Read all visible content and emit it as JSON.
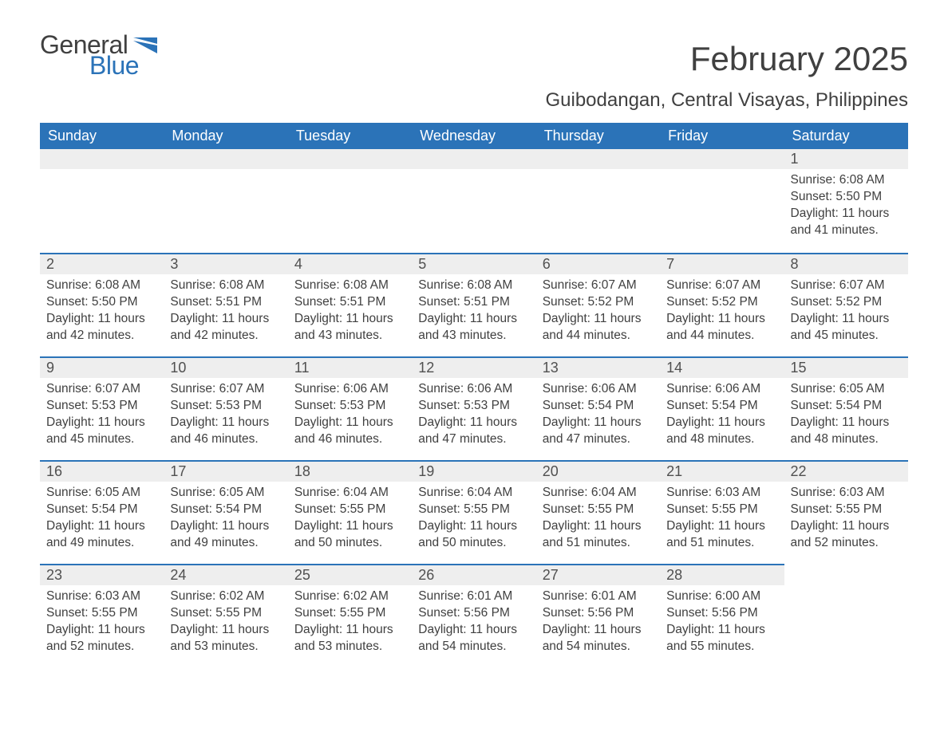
{
  "logo": {
    "general": "General",
    "blue": "Blue"
  },
  "title": "February 2025",
  "subtitle": "Guibodangan, Central Visayas, Philippines",
  "colors": {
    "brand_blue": "#2b73b8",
    "text": "#404040",
    "row_bg": "#eeeeee",
    "background": "#ffffff"
  },
  "calendar": {
    "day_headers": [
      "Sunday",
      "Monday",
      "Tuesday",
      "Wednesday",
      "Thursday",
      "Friday",
      "Saturday"
    ],
    "weeks": [
      [
        null,
        null,
        null,
        null,
        null,
        null,
        {
          "n": "1",
          "sunrise": "Sunrise: 6:08 AM",
          "sunset": "Sunset: 5:50 PM",
          "daylight": "Daylight: 11 hours and 41 minutes."
        }
      ],
      [
        {
          "n": "2",
          "sunrise": "Sunrise: 6:08 AM",
          "sunset": "Sunset: 5:50 PM",
          "daylight": "Daylight: 11 hours and 42 minutes."
        },
        {
          "n": "3",
          "sunrise": "Sunrise: 6:08 AM",
          "sunset": "Sunset: 5:51 PM",
          "daylight": "Daylight: 11 hours and 42 minutes."
        },
        {
          "n": "4",
          "sunrise": "Sunrise: 6:08 AM",
          "sunset": "Sunset: 5:51 PM",
          "daylight": "Daylight: 11 hours and 43 minutes."
        },
        {
          "n": "5",
          "sunrise": "Sunrise: 6:08 AM",
          "sunset": "Sunset: 5:51 PM",
          "daylight": "Daylight: 11 hours and 43 minutes."
        },
        {
          "n": "6",
          "sunrise": "Sunrise: 6:07 AM",
          "sunset": "Sunset: 5:52 PM",
          "daylight": "Daylight: 11 hours and 44 minutes."
        },
        {
          "n": "7",
          "sunrise": "Sunrise: 6:07 AM",
          "sunset": "Sunset: 5:52 PM",
          "daylight": "Daylight: 11 hours and 44 minutes."
        },
        {
          "n": "8",
          "sunrise": "Sunrise: 6:07 AM",
          "sunset": "Sunset: 5:52 PM",
          "daylight": "Daylight: 11 hours and 45 minutes."
        }
      ],
      [
        {
          "n": "9",
          "sunrise": "Sunrise: 6:07 AM",
          "sunset": "Sunset: 5:53 PM",
          "daylight": "Daylight: 11 hours and 45 minutes."
        },
        {
          "n": "10",
          "sunrise": "Sunrise: 6:07 AM",
          "sunset": "Sunset: 5:53 PM",
          "daylight": "Daylight: 11 hours and 46 minutes."
        },
        {
          "n": "11",
          "sunrise": "Sunrise: 6:06 AM",
          "sunset": "Sunset: 5:53 PM",
          "daylight": "Daylight: 11 hours and 46 minutes."
        },
        {
          "n": "12",
          "sunrise": "Sunrise: 6:06 AM",
          "sunset": "Sunset: 5:53 PM",
          "daylight": "Daylight: 11 hours and 47 minutes."
        },
        {
          "n": "13",
          "sunrise": "Sunrise: 6:06 AM",
          "sunset": "Sunset: 5:54 PM",
          "daylight": "Daylight: 11 hours and 47 minutes."
        },
        {
          "n": "14",
          "sunrise": "Sunrise: 6:06 AM",
          "sunset": "Sunset: 5:54 PM",
          "daylight": "Daylight: 11 hours and 48 minutes."
        },
        {
          "n": "15",
          "sunrise": "Sunrise: 6:05 AM",
          "sunset": "Sunset: 5:54 PM",
          "daylight": "Daylight: 11 hours and 48 minutes."
        }
      ],
      [
        {
          "n": "16",
          "sunrise": "Sunrise: 6:05 AM",
          "sunset": "Sunset: 5:54 PM",
          "daylight": "Daylight: 11 hours and 49 minutes."
        },
        {
          "n": "17",
          "sunrise": "Sunrise: 6:05 AM",
          "sunset": "Sunset: 5:54 PM",
          "daylight": "Daylight: 11 hours and 49 minutes."
        },
        {
          "n": "18",
          "sunrise": "Sunrise: 6:04 AM",
          "sunset": "Sunset: 5:55 PM",
          "daylight": "Daylight: 11 hours and 50 minutes."
        },
        {
          "n": "19",
          "sunrise": "Sunrise: 6:04 AM",
          "sunset": "Sunset: 5:55 PM",
          "daylight": "Daylight: 11 hours and 50 minutes."
        },
        {
          "n": "20",
          "sunrise": "Sunrise: 6:04 AM",
          "sunset": "Sunset: 5:55 PM",
          "daylight": "Daylight: 11 hours and 51 minutes."
        },
        {
          "n": "21",
          "sunrise": "Sunrise: 6:03 AM",
          "sunset": "Sunset: 5:55 PM",
          "daylight": "Daylight: 11 hours and 51 minutes."
        },
        {
          "n": "22",
          "sunrise": "Sunrise: 6:03 AM",
          "sunset": "Sunset: 5:55 PM",
          "daylight": "Daylight: 11 hours and 52 minutes."
        }
      ],
      [
        {
          "n": "23",
          "sunrise": "Sunrise: 6:03 AM",
          "sunset": "Sunset: 5:55 PM",
          "daylight": "Daylight: 11 hours and 52 minutes."
        },
        {
          "n": "24",
          "sunrise": "Sunrise: 6:02 AM",
          "sunset": "Sunset: 5:55 PM",
          "daylight": "Daylight: 11 hours and 53 minutes."
        },
        {
          "n": "25",
          "sunrise": "Sunrise: 6:02 AM",
          "sunset": "Sunset: 5:55 PM",
          "daylight": "Daylight: 11 hours and 53 minutes."
        },
        {
          "n": "26",
          "sunrise": "Sunrise: 6:01 AM",
          "sunset": "Sunset: 5:56 PM",
          "daylight": "Daylight: 11 hours and 54 minutes."
        },
        {
          "n": "27",
          "sunrise": "Sunrise: 6:01 AM",
          "sunset": "Sunset: 5:56 PM",
          "daylight": "Daylight: 11 hours and 54 minutes."
        },
        {
          "n": "28",
          "sunrise": "Sunrise: 6:00 AM",
          "sunset": "Sunset: 5:56 PM",
          "daylight": "Daylight: 11 hours and 55 minutes."
        },
        null
      ]
    ]
  }
}
